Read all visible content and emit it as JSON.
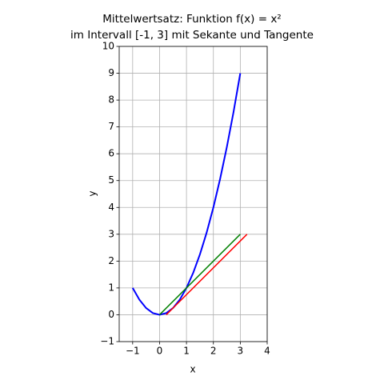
{
  "chart_data": {
    "type": "line",
    "title": [
      "Mittelwertsatz: Funktion f(x) = x²",
      "im Intervall [-1, 3] mit Sekante und Tangente"
    ],
    "xlabel": "x",
    "ylabel": "y",
    "xlim": [
      -1.5,
      4
    ],
    "ylim": [
      -1,
      10
    ],
    "xticks": [
      {
        "value": -1,
        "label": "−1"
      },
      0,
      1,
      2,
      3,
      4
    ],
    "yticks": [
      {
        "value": -1,
        "label": "−1"
      },
      0,
      1,
      2,
      3,
      4,
      5,
      6,
      7,
      8,
      9,
      10
    ],
    "grid": true,
    "series": [
      {
        "color": "#0000ff",
        "x": [
          -1,
          -0.75,
          -0.5,
          -0.25,
          0,
          0.25,
          0.5,
          0.75,
          1,
          1.25,
          1.5,
          1.75,
          2,
          2.25,
          2.5,
          2.75,
          3
        ],
        "values": [
          1,
          0.5625,
          0.25,
          0.0625,
          0,
          0.0625,
          0.25,
          0.5625,
          1,
          1.5625,
          2.25,
          3.0625,
          4,
          5.0625,
          6.25,
          7.5625,
          9
        ]
      },
      {
        "color": "#008000",
        "x": [
          0,
          3
        ],
        "values": [
          0,
          3
        ]
      },
      {
        "color": "#ff0000",
        "x": [
          0.25,
          3.25
        ],
        "values": [
          0,
          3
        ]
      }
    ]
  }
}
